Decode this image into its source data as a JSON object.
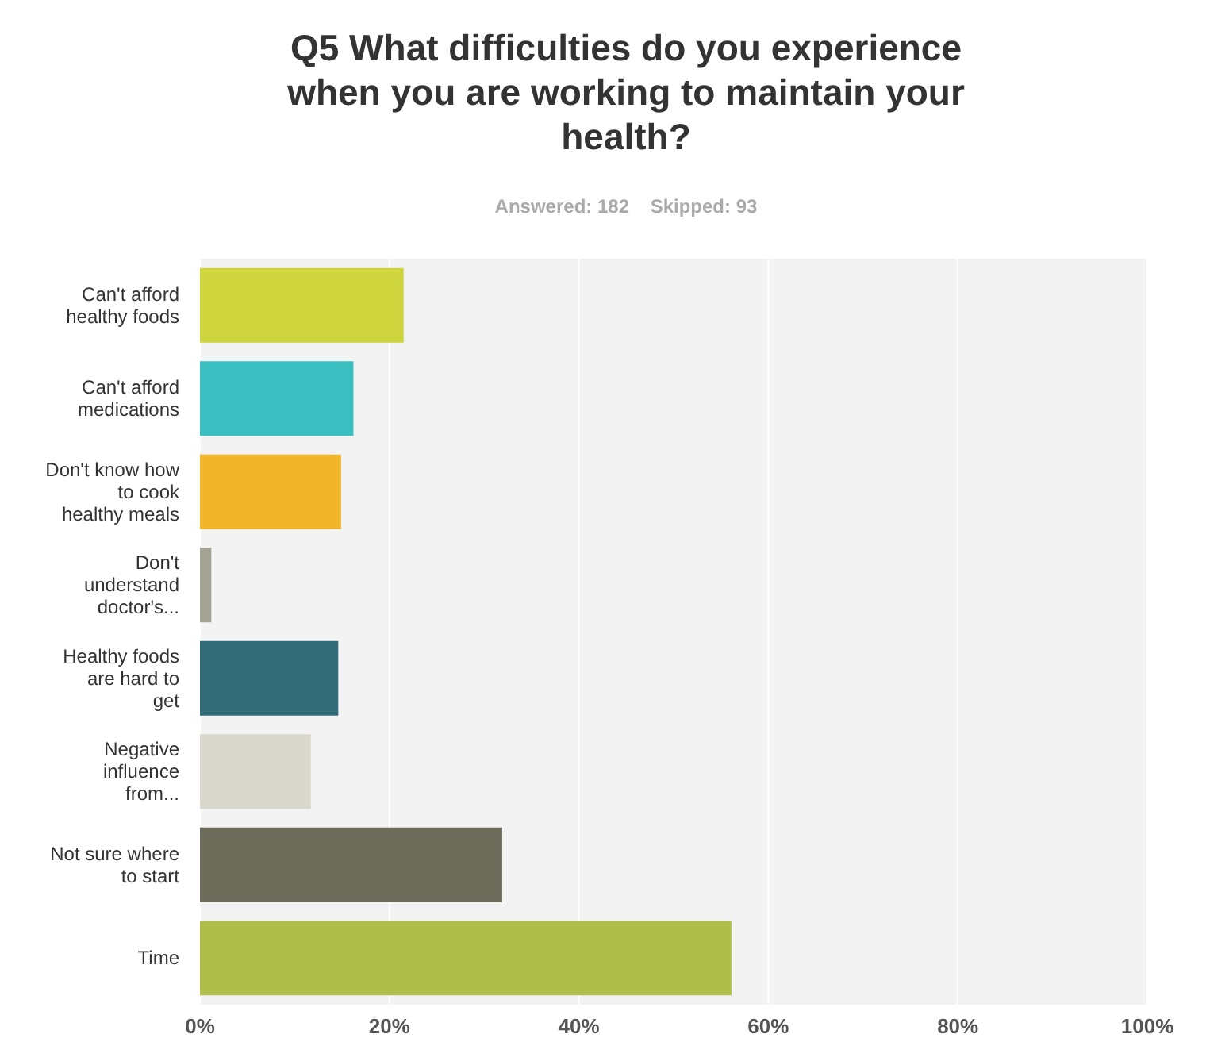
{
  "chart_data": {
    "type": "bar",
    "orientation": "horizontal",
    "title": "Q5 What difficulties do you experience when you are working to maintain your health?",
    "subtitle": "Answered: 182    Skipped: 93",
    "categories": [
      "Can't afford healthy foods",
      "Can't afford medications",
      "Don't know how to cook healthy meals",
      "Don't understand doctor's...",
      "Healthy foods are hard to get",
      "Negative influence from...",
      "Not sure where to start",
      "Time"
    ],
    "values": [
      21.5,
      16.2,
      14.9,
      1.2,
      14.6,
      11.7,
      31.9,
      56.1
    ],
    "colors": [
      "#cdd43c",
      "#3bbfc1",
      "#f1b52a",
      "#a3a393",
      "#336d79",
      "#d9d7cb",
      "#6c6a58",
      "#afbd4b"
    ],
    "xlim": [
      0,
      100
    ],
    "xticks": [
      {
        "value": 0,
        "label": "0%"
      },
      {
        "value": 20,
        "label": "20%"
      },
      {
        "value": 40,
        "label": "40%"
      },
      {
        "value": 60,
        "label": "60%"
      },
      {
        "value": 80,
        "label": "80%"
      },
      {
        "value": 100,
        "label": "100%"
      }
    ],
    "grid": "x"
  }
}
